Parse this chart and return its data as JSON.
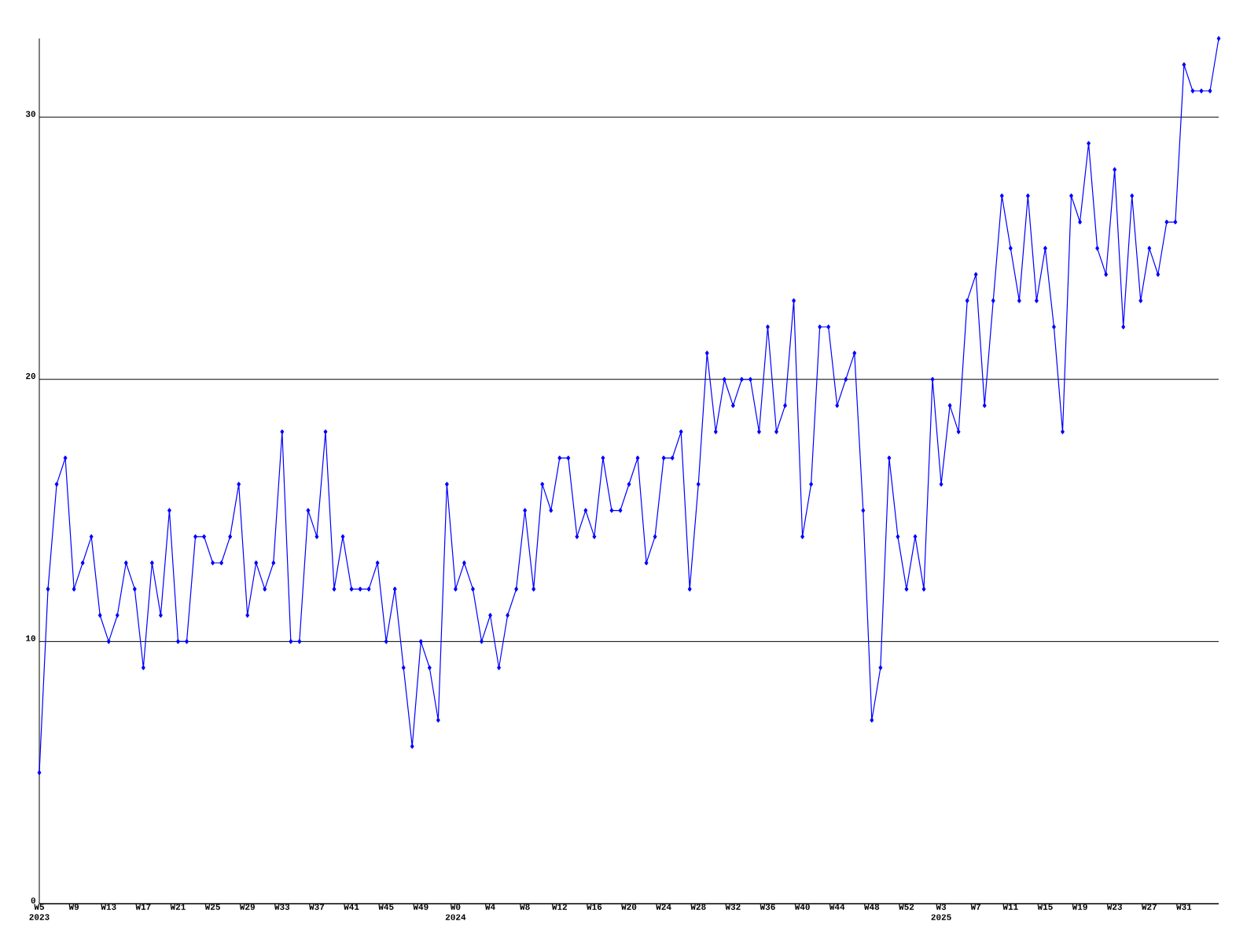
{
  "chart_data": {
    "type": "line",
    "categories": [
      "W5 2023",
      null,
      null,
      null,
      "W9",
      null,
      null,
      null,
      "W13",
      null,
      null,
      null,
      "W17",
      null,
      null,
      null,
      "W21",
      null,
      null,
      null,
      "W25",
      null,
      null,
      null,
      "W29",
      null,
      null,
      null,
      "W33",
      null,
      null,
      null,
      "W37",
      null,
      null,
      null,
      "W41",
      null,
      null,
      null,
      "W45",
      null,
      null,
      null,
      "W49",
      null,
      null,
      null,
      "W0 2024",
      null,
      null,
      null,
      "W4",
      null,
      null,
      null,
      "W8",
      null,
      null,
      null,
      "W12",
      null,
      null,
      null,
      "W16",
      null,
      null,
      null,
      "W20",
      null,
      null,
      null,
      "W24",
      null,
      null,
      null,
      "W28",
      null,
      null,
      null,
      "W32",
      null,
      null,
      null,
      "W36",
      null,
      null,
      null,
      "W40",
      null,
      null,
      null,
      "W44",
      null,
      null,
      null,
      "W48",
      null,
      null,
      null,
      "W52",
      null,
      null,
      null,
      "W3 2025",
      null,
      null,
      null,
      "W7",
      null,
      null,
      null,
      "W11",
      null,
      null,
      null,
      "W15",
      null,
      null,
      null,
      "W19",
      null,
      null,
      null,
      "W23",
      null,
      null,
      null,
      "W27",
      null,
      null,
      null,
      "W31",
      null,
      null,
      null,
      null
    ],
    "series": [
      {
        "color": "#0000ff",
        "values": [
          5,
          12,
          16,
          17,
          12,
          13,
          14,
          11,
          10,
          11,
          13,
          12,
          9,
          13,
          11,
          15,
          10,
          10,
          14,
          14,
          13,
          13,
          14,
          16,
          11,
          13,
          12,
          13,
          18,
          10,
          10,
          15,
          14,
          18,
          12,
          14,
          12,
          12,
          12,
          13,
          10,
          12,
          9,
          6,
          10,
          9,
          7,
          16,
          12,
          13,
          12,
          10,
          11,
          9,
          11,
          12,
          15,
          12,
          16,
          15,
          17,
          17,
          14,
          15,
          14,
          17,
          15,
          15,
          16,
          17,
          13,
          14,
          17,
          17,
          18,
          12,
          16,
          21,
          18,
          20,
          19,
          20,
          20,
          18,
          22,
          18,
          19,
          23,
          14,
          16,
          22,
          22,
          19,
          20,
          21,
          15,
          7,
          9,
          17,
          14,
          12,
          14,
          12,
          20,
          16,
          19,
          18,
          23,
          24,
          19,
          23,
          27,
          25,
          23,
          27,
          23,
          25,
          22,
          18,
          27,
          26,
          29,
          25,
          24,
          28,
          22,
          27,
          23,
          25,
          24,
          26,
          26,
          32,
          31,
          31,
          31,
          33
        ]
      }
    ],
    "ylim": [
      0,
      33
    ],
    "yticks": [
      0,
      10,
      20,
      30
    ],
    "grid": "y",
    "marker": "diamond",
    "line_style": "solid"
  }
}
